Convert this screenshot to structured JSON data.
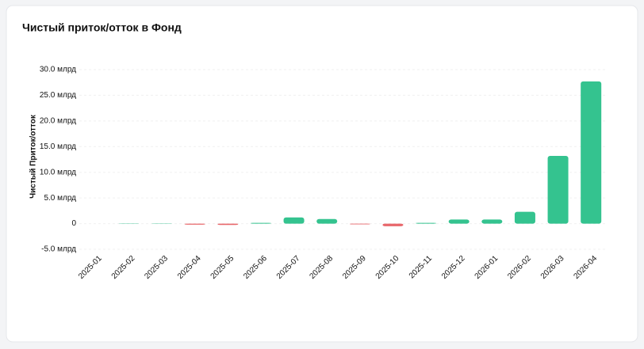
{
  "chart_data": {
    "type": "bar",
    "title": "Чистый приток/отток в Фонд",
    "y_label": "Чистый Приток/отток",
    "categories": [
      "2025-01",
      "2025-02",
      "2025-03",
      "2025-04",
      "2025-05",
      "2025-06",
      "2025-07",
      "2025-08",
      "2025-09",
      "2025-10",
      "2025-11",
      "2025-12",
      "2026-01",
      "2026-02",
      "2026-03",
      "2026-04"
    ],
    "values": [
      0,
      0.05,
      0.05,
      -0.2,
      -0.25,
      0.15,
      1.2,
      0.9,
      -0.15,
      -0.5,
      0.15,
      0.8,
      0.8,
      2.3,
      13.2,
      27.7
    ],
    "positive_color": "#34c38f",
    "negative_color": "#e8676b",
    "ylim": [
      -5,
      30
    ],
    "yticks": [
      {
        "value": -5,
        "label": "-5.0 млрд"
      },
      {
        "value": 0,
        "label": "0"
      },
      {
        "value": 5,
        "label": "5.0 млрд"
      },
      {
        "value": 10,
        "label": "10.0 млрд"
      },
      {
        "value": 15,
        "label": "15.0 млрд"
      },
      {
        "value": 20,
        "label": "20.0 млрд"
      },
      {
        "value": 25,
        "label": "25.0 млрд"
      },
      {
        "value": 30,
        "label": "30.0 млрд"
      }
    ],
    "grid": true
  }
}
